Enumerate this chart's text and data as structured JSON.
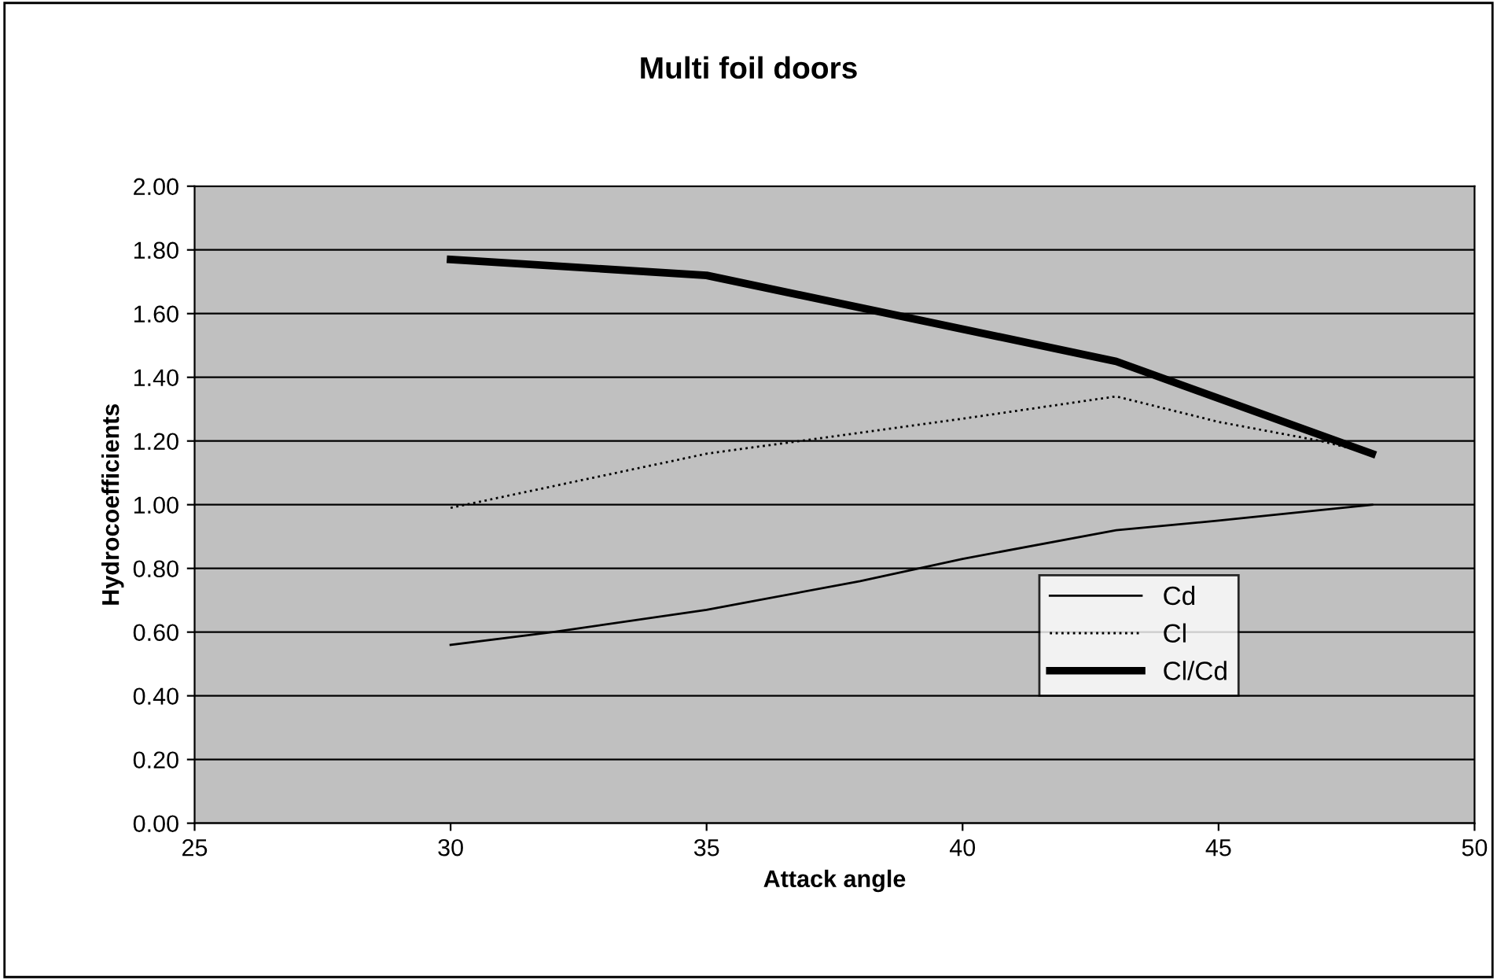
{
  "chart_data": {
    "type": "line",
    "title": "Multi foil doors",
    "xlabel": "Attack angle",
    "ylabel": "Hydrocoefficients",
    "xlim": [
      25,
      50
    ],
    "xticks": [
      25,
      30,
      35,
      40,
      45,
      50
    ],
    "ylim": [
      0,
      2
    ],
    "yticks": [
      {
        "value": 0,
        "label": "0.00"
      },
      {
        "value": 0.2,
        "label": "0.20"
      },
      {
        "value": 0.4,
        "label": "0.40"
      },
      {
        "value": 0.6,
        "label": "0.60"
      },
      {
        "value": 0.8,
        "label": "0.80"
      },
      {
        "value": 1.0,
        "label": "1.00"
      },
      {
        "value": 1.2,
        "label": "1.20"
      },
      {
        "value": 1.4,
        "label": "1.40"
      },
      {
        "value": 1.6,
        "label": "1.60"
      },
      {
        "value": 1.8,
        "label": "1.80"
      },
      {
        "value": 2.0,
        "label": "2.00"
      }
    ],
    "grid": "y",
    "legend": "right",
    "marker": "none",
    "series": [
      {
        "name": "Cd",
        "color": "#000000",
        "line_style": "solid",
        "x": [
          30,
          32,
          35,
          38,
          40,
          43,
          45,
          48
        ],
        "values": [
          0.56,
          0.6,
          0.67,
          0.76,
          0.83,
          0.92,
          0.95,
          1.0
        ]
      },
      {
        "name": "Cl",
        "color": "#000000",
        "line_style": "dotted",
        "x": [
          30,
          35,
          40,
          43,
          45,
          47,
          48
        ],
        "values": [
          0.99,
          1.16,
          1.27,
          1.34,
          1.26,
          1.2,
          1.16
        ]
      },
      {
        "name": "Cl/Cd",
        "color": "#000000",
        "line_style": "solid",
        "x": [
          30,
          35,
          43,
          48
        ],
        "values": [
          1.77,
          1.72,
          1.45,
          1.16
        ]
      }
    ]
  }
}
